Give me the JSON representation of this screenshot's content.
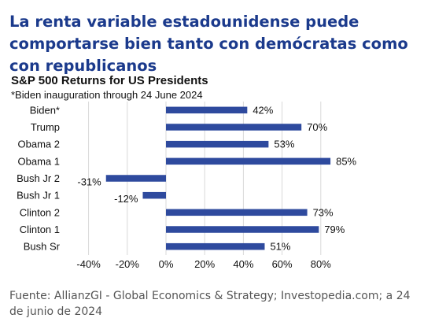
{
  "headline": "La renta variable estadounidense puede comportarse bien tanto con demócratas como con republicanos",
  "footer": "Fuente: AllianzGI - Global Economics & Strategy; Investopedia.com; a 24 de junio de 2024",
  "colors": {
    "headline": "#1b3a8c",
    "bar": "#2e4a9e",
    "grid": "#d9d9d9"
  },
  "chart_data": {
    "type": "bar",
    "orientation": "horizontal",
    "title": "S&P 500 Returns for US Presidents",
    "subtitle": "*Biden inauguration through 24 June 2024",
    "categories": [
      "Biden*",
      "Trump",
      "Obama 2",
      "Obama 1",
      "Bush Jr 2",
      "Bush Jr 1",
      "Clinton 2",
      "Clinton 1",
      "Bush Sr"
    ],
    "values": [
      42,
      70,
      53,
      85,
      -31,
      -12,
      73,
      79,
      51
    ],
    "value_labels": [
      "42%",
      "70%",
      "53%",
      "85%",
      "-31%",
      "-12%",
      "73%",
      "79%",
      "51%"
    ],
    "xlim": [
      -40,
      85
    ],
    "xticks": [
      -40,
      -20,
      0,
      20,
      40,
      60,
      80
    ],
    "xtick_labels": [
      "-40%",
      "-20%",
      "0%",
      "20%",
      "40%",
      "60%",
      "80%"
    ],
    "grid": true,
    "legend": "none"
  }
}
